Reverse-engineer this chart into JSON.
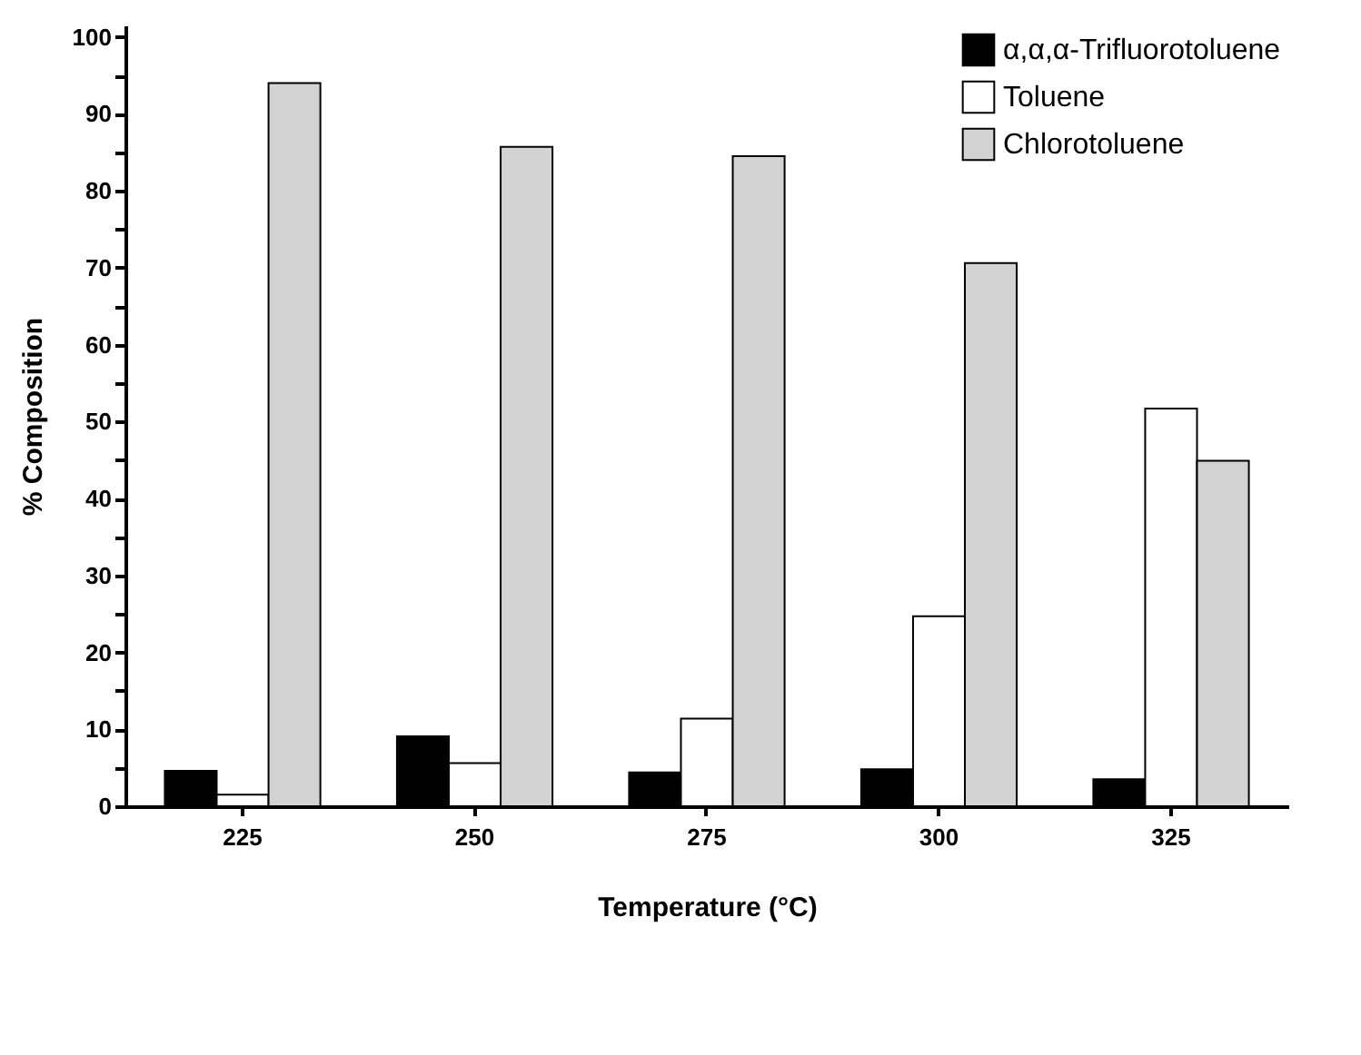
{
  "chart_data": {
    "type": "bar",
    "xlabel": "Temperature (°C)",
    "ylabel": "% Composition",
    "categories": [
      "225",
      "250",
      "275",
      "300",
      "325"
    ],
    "series": [
      {
        "name": "α,α,α-Trifluorotoluene",
        "color": "#000000",
        "values": [
          4.6,
          9.1,
          4.4,
          4.8,
          3.5
        ]
      },
      {
        "name": "Toluene",
        "color": "#ffffff",
        "values": [
          1.5,
          5.6,
          11.4,
          24.7,
          51.7
        ]
      },
      {
        "name": "Chlorotoluene",
        "color": "#d3d3d3",
        "values": [
          94.0,
          85.7,
          84.5,
          70.6,
          44.9
        ]
      }
    ],
    "ylim": [
      0,
      101.5
    ],
    "yticks": [
      0,
      {
        "value": 5,
        "label": null
      },
      10,
      {
        "value": 15,
        "label": null
      },
      20,
      {
        "value": 25,
        "label": null
      },
      30,
      {
        "value": 35,
        "label": null
      },
      40,
      {
        "value": 45,
        "label": null
      },
      50,
      {
        "value": 55,
        "label": null
      },
      60,
      {
        "value": 65,
        "label": null
      },
      70,
      {
        "value": 75,
        "label": null
      },
      80,
      {
        "value": 85,
        "label": null
      },
      90,
      {
        "value": 95,
        "label": null
      },
      100
    ],
    "grid": false,
    "legend": "top right"
  }
}
